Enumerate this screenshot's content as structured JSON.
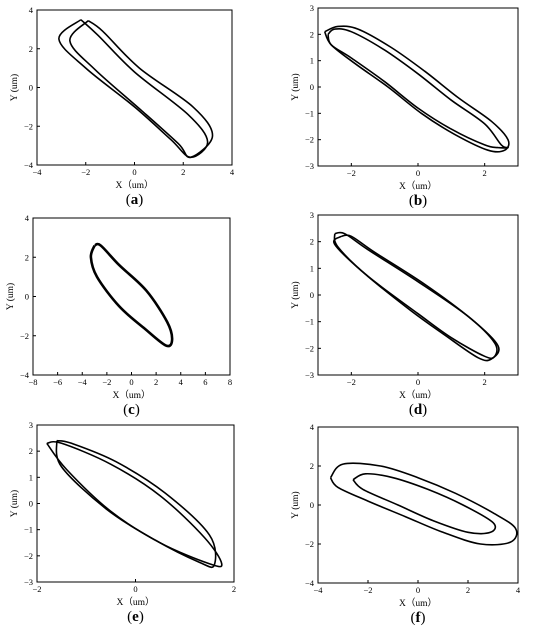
{
  "chart_data": [
    {
      "id": "a",
      "type": "line",
      "caption": "a",
      "xlabel": "X（um）",
      "ylabel": "Y (um)",
      "xlim": [
        -4,
        4
      ],
      "ylim": [
        -4,
        4
      ],
      "xticks": [
        -4,
        -2,
        0,
        2,
        4
      ],
      "yticks": [
        -4,
        -2,
        0,
        2,
        4
      ],
      "series": [
        {
          "values": [
            [
              -2.2,
              3.5
            ],
            [
              -3.1,
              2.5
            ],
            [
              -2.0,
              1.0
            ],
            [
              0,
              -1.0
            ],
            [
              1.5,
              -2.7
            ],
            [
              2.3,
              -3.6
            ],
            [
              3.0,
              -2.8
            ],
            [
              2.2,
              -1.4
            ],
            [
              0,
              0.8
            ],
            [
              -1.5,
              2.7
            ],
            [
              -2.2,
              3.5
            ]
          ]
        },
        {
          "values": [
            [
              -1.9,
              3.45
            ],
            [
              -2.65,
              2.4
            ],
            [
              -1.6,
              0.9
            ],
            [
              0.3,
              -1.2
            ],
            [
              1.8,
              -2.9
            ],
            [
              2.3,
              -3.6
            ],
            [
              3.2,
              -2.5
            ],
            [
              2.4,
              -1.0
            ],
            [
              0.2,
              1.0
            ],
            [
              -1.3,
              2.9
            ],
            [
              -1.9,
              3.45
            ]
          ]
        }
      ]
    },
    {
      "id": "b",
      "type": "line",
      "caption": "b",
      "xlabel": "X（um）",
      "ylabel": "Y (um)",
      "xlim": [
        -3,
        3
      ],
      "ylim": [
        -3,
        3
      ],
      "xticks": [
        -2,
        0,
        2
      ],
      "yticks": [
        -3,
        -2,
        -1,
        0,
        1,
        2,
        3
      ],
      "series": [
        {
          "values": [
            [
              -2.7,
              2.0
            ],
            [
              -2.5,
              2.2
            ],
            [
              -2.0,
              2.1
            ],
            [
              -1.0,
              1.4
            ],
            [
              0,
              0.5
            ],
            [
              1.0,
              -0.5
            ],
            [
              2.0,
              -1.4
            ],
            [
              2.5,
              -2.2
            ],
            [
              2.7,
              -2.3
            ],
            [
              2.4,
              -2.3
            ],
            [
              2.0,
              -2.2
            ],
            [
              1.0,
              -1.6
            ],
            [
              0,
              -0.8
            ],
            [
              -1.0,
              0.2
            ],
            [
              -2.0,
              1.1
            ],
            [
              -2.6,
              1.6
            ],
            [
              -2.7,
              2.0
            ]
          ]
        },
        {
          "values": [
            [
              -2.8,
              2.1
            ],
            [
              -2.4,
              2.3
            ],
            [
              -1.8,
              2.2
            ],
            [
              -0.8,
              1.5
            ],
            [
              0.2,
              0.6
            ],
            [
              1.2,
              -0.4
            ],
            [
              2.2,
              -1.3
            ],
            [
              2.7,
              -2.0
            ],
            [
              2.6,
              -2.4
            ],
            [
              2.1,
              -2.4
            ],
            [
              1.1,
              -1.8
            ],
            [
              0.1,
              -1.0
            ],
            [
              -0.9,
              0.0
            ],
            [
              -1.9,
              0.9
            ],
            [
              -2.6,
              1.6
            ],
            [
              -2.8,
              2.1
            ]
          ]
        }
      ]
    },
    {
      "id": "c",
      "type": "line",
      "caption": "c",
      "xlabel": "X（um）",
      "ylabel": "Y (um)",
      "xlim": [
        -8,
        8
      ],
      "ylim": [
        -4,
        4
      ],
      "xticks": [
        -8,
        -6,
        -4,
        -2,
        0,
        2,
        4,
        6,
        8
      ],
      "yticks": [
        -4,
        -2,
        0,
        2,
        4
      ],
      "series": [
        {
          "values": [
            [
              -3.0,
              2.6
            ],
            [
              -3.3,
              2.0
            ],
            [
              -2.8,
              1.0
            ],
            [
              -1.0,
              -0.5
            ],
            [
              1.0,
              -1.6
            ],
            [
              2.8,
              -2.5
            ],
            [
              3.3,
              -2.2
            ],
            [
              2.9,
              -1.3
            ],
            [
              1.2,
              0.3
            ],
            [
              -1.0,
              1.6
            ],
            [
              -2.5,
              2.6
            ],
            [
              -3.0,
              2.6
            ]
          ]
        }
      ]
    },
    {
      "id": "d",
      "type": "line",
      "caption": "d",
      "xlabel": "X（um）",
      "ylabel": "Y (um)",
      "xlim": [
        -3,
        3
      ],
      "ylim": [
        -3,
        3
      ],
      "xticks": [
        -2,
        0,
        2
      ],
      "yticks": [
        -3,
        -2,
        -1,
        0,
        1,
        2,
        3
      ],
      "series": [
        {
          "values": [
            [
              -2.5,
              2.3
            ],
            [
              -2.2,
              2.3
            ],
            [
              -1.5,
              1.7
            ],
            [
              0,
              0.5
            ],
            [
              1.5,
              -0.8
            ],
            [
              2.3,
              -1.8
            ],
            [
              2.3,
              -2.3
            ],
            [
              2.0,
              -2.3
            ],
            [
              1.0,
              -1.6
            ],
            [
              0,
              -0.7
            ],
            [
              -1.5,
              0.7
            ],
            [
              -2.4,
              1.8
            ],
            [
              -2.5,
              2.3
            ]
          ]
        },
        {
          "values": [
            [
              -2.3,
              2.2
            ],
            [
              -2.0,
              2.2
            ],
            [
              -1.3,
              1.6
            ],
            [
              0.2,
              0.4
            ],
            [
              1.6,
              -0.9
            ],
            [
              2.4,
              -1.9
            ],
            [
              2.2,
              -2.4
            ],
            [
              1.8,
              -2.35
            ],
            [
              0.8,
              -1.5
            ],
            [
              -0.2,
              -0.6
            ],
            [
              -1.6,
              0.8
            ],
            [
              -2.5,
              1.9
            ],
            [
              -2.3,
              2.2
            ]
          ]
        }
      ]
    },
    {
      "id": "e",
      "type": "line",
      "caption": "e",
      "xlabel": "X（um）",
      "ylabel": "Y (um)",
      "xlim": [
        -2,
        2
      ],
      "ylim": [
        -3,
        3
      ],
      "xticks": [
        -2,
        0,
        2
      ],
      "yticks": [
        -3,
        -2,
        -1,
        0,
        1,
        2,
        3
      ],
      "series": [
        {
          "values": [
            [
              -1.8,
              2.3
            ],
            [
              -1.5,
              2.3
            ],
            [
              -0.5,
              1.5
            ],
            [
              0.5,
              0.3
            ],
            [
              1.4,
              -1.3
            ],
            [
              1.75,
              -2.3
            ],
            [
              1.5,
              -2.3
            ],
            [
              0.5,
              -1.5
            ],
            [
              -0.5,
              -0.3
            ],
            [
              -1.4,
              1.3
            ],
            [
              -1.8,
              2.3
            ]
          ]
        },
        {
          "values": [
            [
              -1.6,
              2.4
            ],
            [
              -1.3,
              2.3
            ],
            [
              -0.4,
              1.6
            ],
            [
              0.6,
              0.4
            ],
            [
              1.5,
              -1.2
            ],
            [
              1.6,
              -2.35
            ],
            [
              1.3,
              -2.25
            ],
            [
              0.4,
              -1.4
            ],
            [
              -0.6,
              -0.2
            ],
            [
              -1.5,
              1.4
            ],
            [
              -1.6,
              2.4
            ]
          ]
        }
      ]
    },
    {
      "id": "f",
      "type": "line",
      "caption": "f",
      "xlabel": "X（um）",
      "ylabel": "Y (um)",
      "xlim": [
        -4,
        4
      ],
      "ylim": [
        -4,
        4
      ],
      "xticks": [
        -4,
        -2,
        0,
        2,
        4
      ],
      "yticks": [
        -4,
        -2,
        0,
        2,
        4
      ],
      "series": [
        {
          "values": [
            [
              -3.5,
              1.4
            ],
            [
              -3.0,
              2.1
            ],
            [
              -1.5,
              2.0
            ],
            [
              0,
              1.4
            ],
            [
              1.5,
              0.6
            ],
            [
              3.0,
              -0.4
            ],
            [
              3.9,
              -1.2
            ],
            [
              3.7,
              -1.9
            ],
            [
              2.5,
              -2.0
            ],
            [
              1.0,
              -1.4
            ],
            [
              -0.5,
              -0.6
            ],
            [
              -2.0,
              0.2
            ],
            [
              -3.2,
              0.9
            ],
            [
              -3.5,
              1.4
            ]
          ]
        },
        {
          "values": [
            [
              -2.6,
              1.3
            ],
            [
              -2.1,
              1.6
            ],
            [
              -1.0,
              1.4
            ],
            [
              0.4,
              0.8
            ],
            [
              1.8,
              0.0
            ],
            [
              3.0,
              -0.9
            ],
            [
              2.9,
              -1.4
            ],
            [
              2.0,
              -1.4
            ],
            [
              0.6,
              -0.8
            ],
            [
              -0.8,
              0.0
            ],
            [
              -2.2,
              0.8
            ],
            [
              -2.6,
              1.3
            ]
          ]
        }
      ]
    }
  ]
}
